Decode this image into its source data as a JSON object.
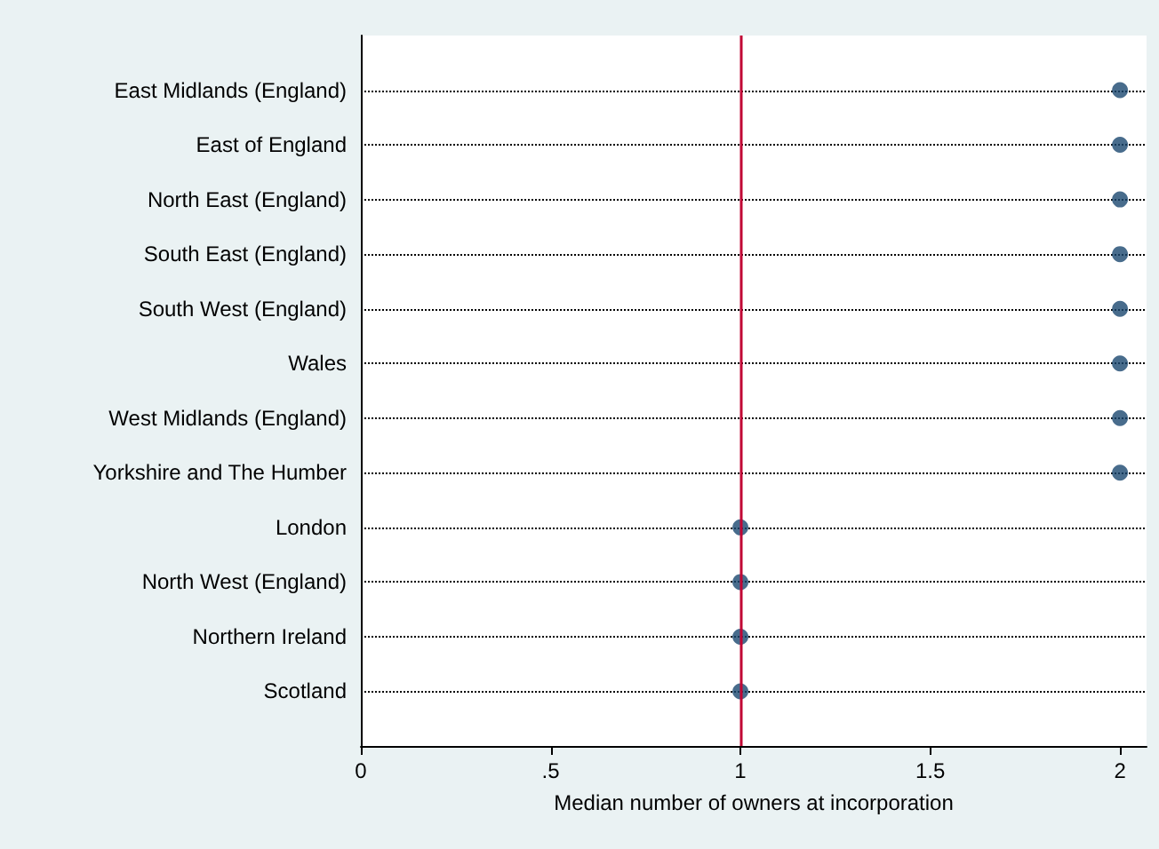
{
  "chart_data": {
    "type": "scatter",
    "orientation": "horizontal",
    "categories": [
      "East Midlands (England)",
      "East of England",
      "North East (England)",
      "South East (England)",
      "South West (England)",
      "Wales",
      "West Midlands (England)",
      "Yorkshire and The Humber",
      "London",
      "North West (England)",
      "Northern Ireland",
      "Scotland"
    ],
    "values": [
      2,
      2,
      2,
      2,
      2,
      2,
      2,
      2,
      1,
      1,
      1,
      1
    ],
    "color": "#1a476f",
    "xlabel": "Median number of owners at incorporation",
    "xlim": [
      0,
      2.07
    ],
    "xticks": [
      0,
      {
        "value": 0.5,
        "label": ".5"
      },
      1,
      {
        "value": 1.5,
        "label": "1.5"
      },
      2
    ],
    "ref_lines": [
      {
        "axis": "x",
        "value": 1,
        "color": "#c10534",
        "line_style": "solid"
      }
    ],
    "grid": "y",
    "line_style": "dotted",
    "marker": "circle"
  }
}
